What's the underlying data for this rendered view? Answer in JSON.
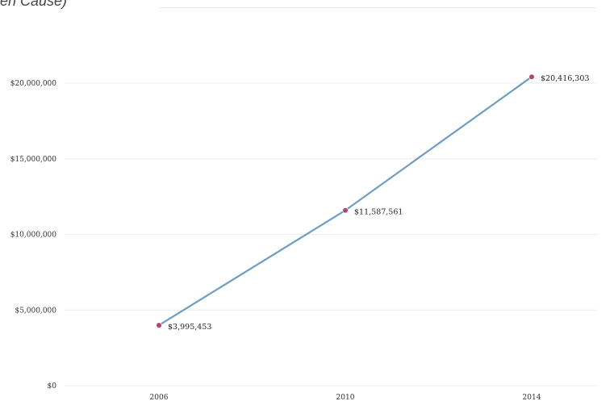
{
  "header": {
    "caption": "en Cause)"
  },
  "chart_data": {
    "type": "line",
    "title": "",
    "xlabel": "",
    "ylabel": "",
    "x": [
      2006,
      2010,
      2014
    ],
    "x_tick_labels": [
      "2006",
      "2010",
      "2014"
    ],
    "series": [
      {
        "values": [
          3995453,
          11587561,
          20416303
        ],
        "data_labels": [
          "$3,995,453",
          "$11,587,561",
          "$20,416,303"
        ]
      }
    ],
    "y_ticks": [
      0,
      5000000,
      10000000,
      15000000,
      20000000
    ],
    "y_tick_labels": [
      "$0",
      "$5,000,000",
      "$10,000,000",
      "$15,000,000",
      "$20,000,000"
    ],
    "ylim": [
      0,
      20000000
    ],
    "grid": "horizontal",
    "legend": "none",
    "colors": {
      "line": "#6f9dc4",
      "marker": "#b5436a",
      "grid": "#ececec"
    }
  }
}
